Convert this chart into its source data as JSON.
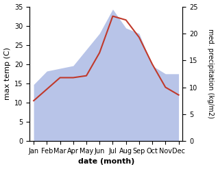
{
  "months": [
    "Jan",
    "Feb",
    "Mar",
    "Apr",
    "May",
    "Jun",
    "Jul",
    "Aug",
    "Sep",
    "Oct",
    "Nov",
    "Dec"
  ],
  "temperature": [
    10.5,
    13.5,
    16.5,
    16.5,
    17.0,
    23.0,
    32.5,
    31.5,
    27.0,
    20.0,
    14.0,
    12.0
  ],
  "precipitation": [
    10.5,
    13.0,
    13.5,
    14.0,
    17.0,
    20.0,
    24.5,
    21.0,
    20.0,
    14.0,
    12.5,
    12.5
  ],
  "temp_color": "#c0392b",
  "precip_fill_color": "#b8c4e8",
  "temp_ylim": [
    0,
    35
  ],
  "precip_ylim": [
    0,
    25
  ],
  "temp_yticks": [
    0,
    5,
    10,
    15,
    20,
    25,
    30,
    35
  ],
  "precip_yticks": [
    0,
    5,
    10,
    15,
    20,
    25
  ],
  "xlabel": "date (month)",
  "ylabel_left": "max temp (C)",
  "ylabel_right": "med. precipitation (kg/m2)",
  "label_fontsize": 8,
  "tick_fontsize": 7
}
